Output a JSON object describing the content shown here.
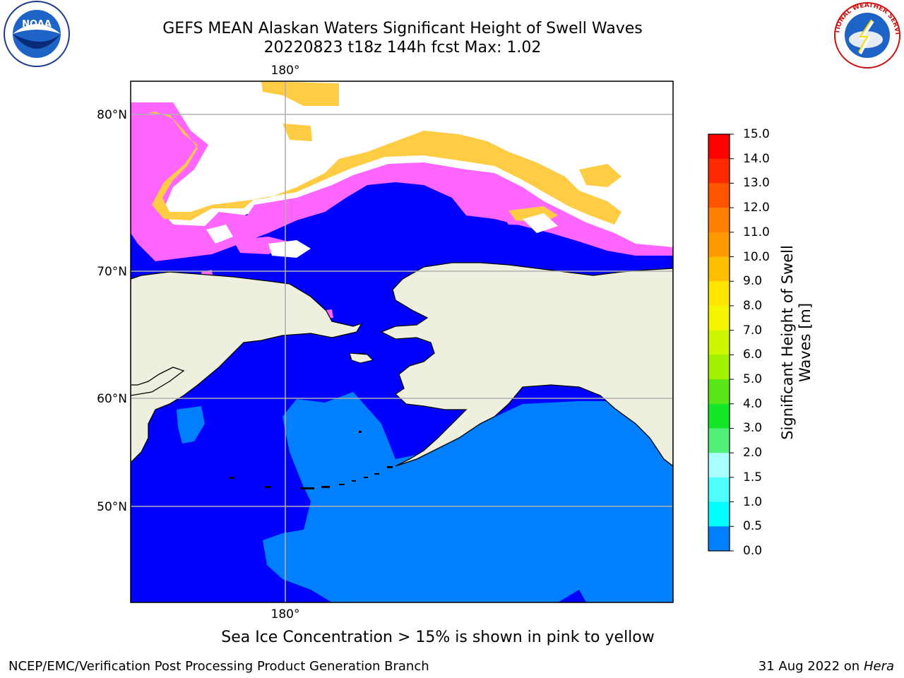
{
  "title": {
    "line1": "GEFS MEAN Alaskan Waters Significant Height of Swell Waves",
    "line2": "20220823 t18z 144h fcst   Max: 1.02"
  },
  "map": {
    "lon_ticks": [
      "180°"
    ],
    "lat_ticks": [
      "80°N",
      "70°N",
      "60°N",
      "50°N"
    ],
    "colors": {
      "water_0_0_5": "#0000ff",
      "water_0_5_1_0": "#0080ff",
      "land": "#efefdf",
      "sea_ice_low": "#ff66ff",
      "sea_ice_high": "#ffcc44",
      "gridline": "#b0b0b0",
      "coast": "#000000"
    }
  },
  "colorbar": {
    "title_line1": "Significant Height of Swell",
    "title_line2": "Waves [m]",
    "levels": [
      "15.0",
      "14.0",
      "13.0",
      "12.0",
      "11.0",
      "10.0",
      "9.0",
      "8.0",
      "7.0",
      "6.0",
      "5.0",
      "4.0",
      "3.0",
      "2.0",
      "1.5",
      "1.0",
      "0.5",
      "0.0"
    ],
    "colors": [
      "#ff0000",
      "#ff2a00",
      "#ff5500",
      "#ff7f00",
      "#ff9900",
      "#ffbf00",
      "#ffe600",
      "#f5f500",
      "#ccf500",
      "#a0f000",
      "#5ae619",
      "#14e628",
      "#50f078",
      "#aaffff",
      "#50ffff",
      "#00ffff",
      "#0080ff",
      "#0000ff"
    ]
  },
  "logos": {
    "noaa": "NOAA",
    "nws": "NATIONAL WEATHER SERVICE"
  },
  "footnote": "Sea Ice Concentration > 15% is shown in pink to yellow",
  "footer": {
    "branch": "NCEP/EMC/Verification Post Processing Product Generation Branch",
    "date": "31 Aug 2022 on",
    "host": "Hera"
  }
}
